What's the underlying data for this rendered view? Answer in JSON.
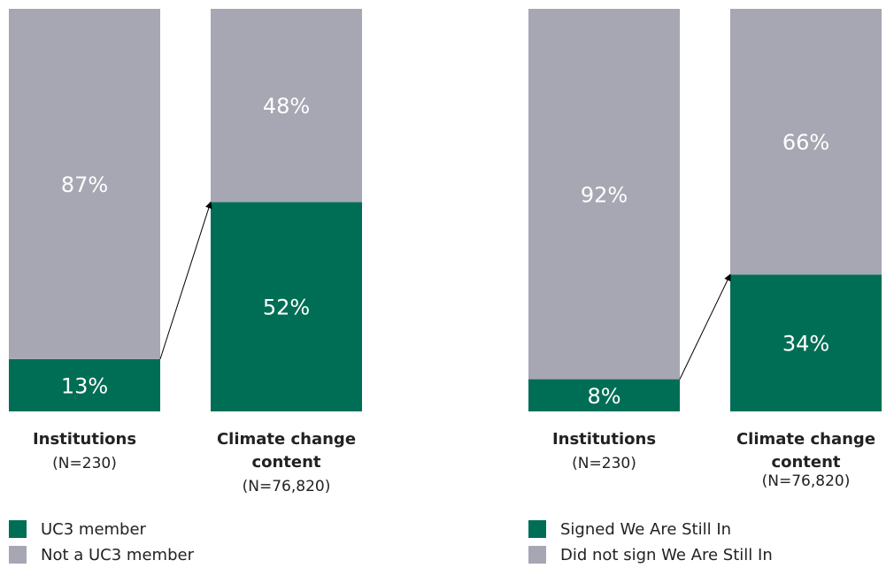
{
  "chart_data": [
    {
      "type": "stacked_bar",
      "categories": [
        "Institutions",
        "Climate change content"
      ],
      "category_subtitles": [
        "(N=230)",
        "(N=76,820)"
      ],
      "ylim": [
        0,
        100
      ],
      "series": [
        {
          "name": "UC3 member",
          "color": "#006e55",
          "values": [
            13,
            52
          ],
          "value_labels": [
            "13%",
            "52%"
          ]
        },
        {
          "name": "Not a UC3 member",
          "color": "#a7a7b3",
          "values": [
            87,
            48
          ],
          "value_labels": [
            "87%",
            "48%"
          ]
        }
      ]
    },
    {
      "type": "stacked_bar",
      "categories": [
        "Institutions",
        "Climate change content"
      ],
      "category_subtitles": [
        "(N=230)",
        "(N=76,820)"
      ],
      "ylim": [
        0,
        100
      ],
      "series": [
        {
          "name": "Signed We Are Still In",
          "color": "#006e55",
          "values": [
            8,
            34
          ],
          "value_labels": [
            "8%",
            "34%"
          ]
        },
        {
          "name": "Did not sign We Are Still In",
          "color": "#a7a7b3",
          "values": [
            92,
            66
          ],
          "value_labels": [
            "92%",
            "66%"
          ]
        }
      ]
    }
  ]
}
